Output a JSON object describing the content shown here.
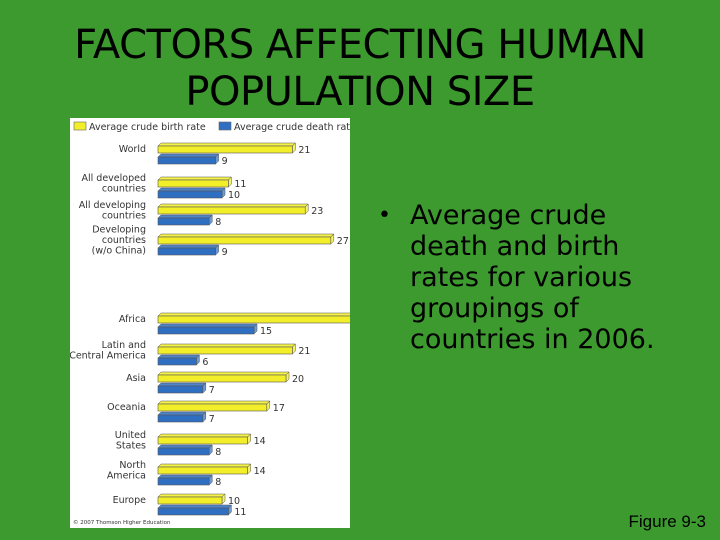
{
  "slide": {
    "title_line1": "FACTORS AFFECTING HUMAN",
    "title_line2": "POPULATION SIZE",
    "bullet": "Average crude death and birth rates for various groupings of countries in 2006.",
    "figure_caption": "Figure 9-3",
    "background_color": "#3c9a2e"
  },
  "chart_data": {
    "type": "bar",
    "orientation": "horizontal",
    "categories": [
      "World",
      "All developed countries",
      "All developing countries",
      "Developing countries (w/o China)",
      "Africa",
      "Latin and Central America",
      "Asia",
      "Oceania",
      "United States",
      "North America",
      "Europe"
    ],
    "category_labels": [
      [
        "World"
      ],
      [
        "All developed",
        "countries"
      ],
      [
        "All developing",
        "countries"
      ],
      [
        "Developing",
        "countries",
        "(w/o China)"
      ],
      [
        "Africa"
      ],
      [
        "Latin and",
        "Central America"
      ],
      [
        "Asia"
      ],
      [
        "Oceania"
      ],
      [
        "United",
        "States"
      ],
      [
        "North",
        "America"
      ],
      [
        "Europe"
      ]
    ],
    "series": [
      {
        "name": "Average crude birth rate",
        "color": "#f2ee2a",
        "values": [
          21,
          11,
          23,
          27,
          38,
          21,
          20,
          17,
          14,
          14,
          10
        ]
      },
      {
        "name": "Average crude death rate",
        "color": "#2f6fc2",
        "values": [
          9,
          10,
          8,
          9,
          15,
          6,
          7,
          7,
          8,
          8,
          11
        ]
      }
    ],
    "xlim": [
      0,
      38
    ],
    "legend_position": "top",
    "credit": "© 2007 Thomson Higher Education"
  }
}
